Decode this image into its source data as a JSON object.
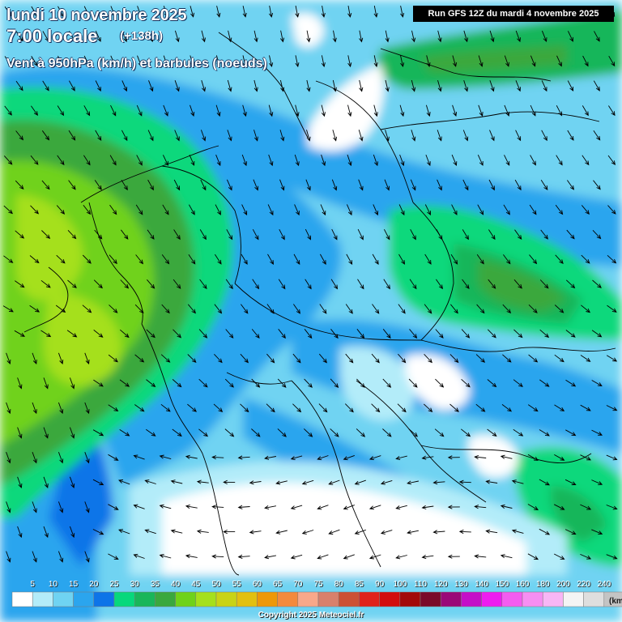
{
  "header": {
    "date_line": "lundi 10 novembre 2025",
    "time_line": "7:00 locale",
    "lead_time": "(+138h)",
    "field_line": "Vent à 950hPa (km/h) et barbules (noeuds)"
  },
  "run_label": "Run GFS 12Z du mardi 4 novembre 2025",
  "legend": {
    "unit": "(km",
    "entries": [
      {
        "label": "",
        "color": "#ffffff"
      },
      {
        "label": "5",
        "color": "#b3ecf9"
      },
      {
        "label": "10",
        "color": "#6fd3f2"
      },
      {
        "label": "15",
        "color": "#2ba5ee"
      },
      {
        "label": "20",
        "color": "#0d74e8"
      },
      {
        "label": "25",
        "color": "#07d87c"
      },
      {
        "label": "30",
        "color": "#19b65a"
      },
      {
        "label": "35",
        "color": "#3aa83e"
      },
      {
        "label": "40",
        "color": "#6fd21a"
      },
      {
        "label": "45",
        "color": "#a5e01c"
      },
      {
        "label": "50",
        "color": "#c9d315"
      },
      {
        "label": "55",
        "color": "#e2c010"
      },
      {
        "label": "60",
        "color": "#ee9808"
      },
      {
        "label": "65",
        "color": "#f48a3d"
      },
      {
        "label": "70",
        "color": "#f8a88a"
      },
      {
        "label": "75",
        "color": "#d8806c"
      },
      {
        "label": "80",
        "color": "#cc5034"
      },
      {
        "label": "85",
        "color": "#e0221b"
      },
      {
        "label": "90",
        "color": "#d20d0d"
      },
      {
        "label": "100",
        "color": "#a20a0a"
      },
      {
        "label": "110",
        "color": "#7a0a2a"
      },
      {
        "label": "120",
        "color": "#9a0878"
      },
      {
        "label": "130",
        "color": "#c410c8"
      },
      {
        "label": "140",
        "color": "#ee1cf0"
      },
      {
        "label": "150",
        "color": "#f45cf0"
      },
      {
        "label": "160",
        "color": "#f68ef2"
      },
      {
        "label": "180",
        "color": "#f8b6f5"
      },
      {
        "label": "200",
        "color": "#f4f4f4"
      },
      {
        "label": "220",
        "color": "#dedede"
      },
      {
        "label": "240",
        "color": "#c4c4c4"
      }
    ]
  },
  "copyright": "Copyright 2025 Meteociel.fr",
  "colors": {
    "ocean_dark": "#0b5fd6",
    "outline": "#13325e",
    "border": "#000000"
  }
}
